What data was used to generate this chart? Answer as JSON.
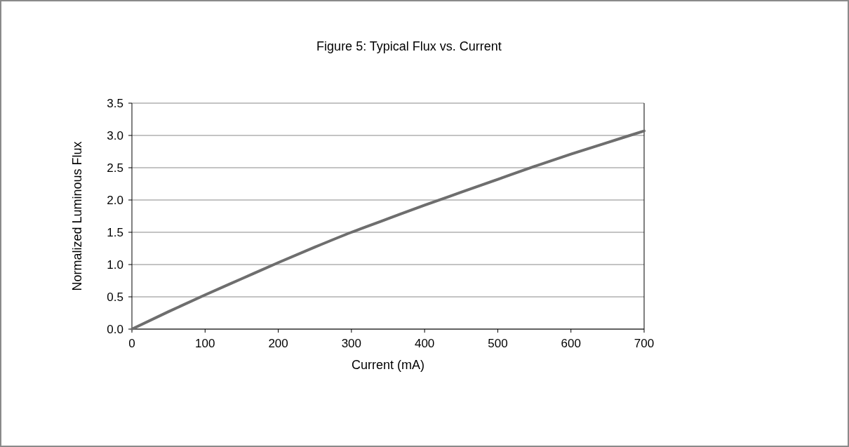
{
  "chart_data": {
    "type": "line",
    "title": "Figure 5:  Typical Flux vs. Current",
    "xlabel": "Current (mA)",
    "ylabel": "Normalized Luminous Flux",
    "x": [
      0,
      50,
      100,
      150,
      200,
      250,
      300,
      350,
      400,
      450,
      500,
      550,
      600,
      650,
      700
    ],
    "series": [
      {
        "color": "#6e6e6e",
        "values": [
          0,
          0.27,
          0.53,
          0.78,
          1.03,
          1.27,
          1.5,
          1.71,
          1.92,
          2.12,
          2.32,
          2.52,
          2.71,
          2.89,
          3.07
        ]
      }
    ],
    "xlim": [
      0,
      700
    ],
    "xticks": [
      0,
      100,
      200,
      300,
      400,
      500,
      600,
      700
    ],
    "ylim": [
      0,
      3.5
    ],
    "yticks": [
      {
        "value": 0,
        "label": "0.0"
      },
      {
        "value": 0.5,
        "label": "0.5"
      },
      {
        "value": 1,
        "label": "1.0"
      },
      {
        "value": 1.5,
        "label": "1.5"
      },
      {
        "value": 2,
        "label": "2.0"
      },
      {
        "value": 2.5,
        "label": "2.5"
      },
      {
        "value": 3,
        "label": "3.0"
      },
      {
        "value": 3.5,
        "label": "3.5"
      }
    ],
    "grid": "y",
    "marker": "none",
    "line_style": "solid"
  }
}
